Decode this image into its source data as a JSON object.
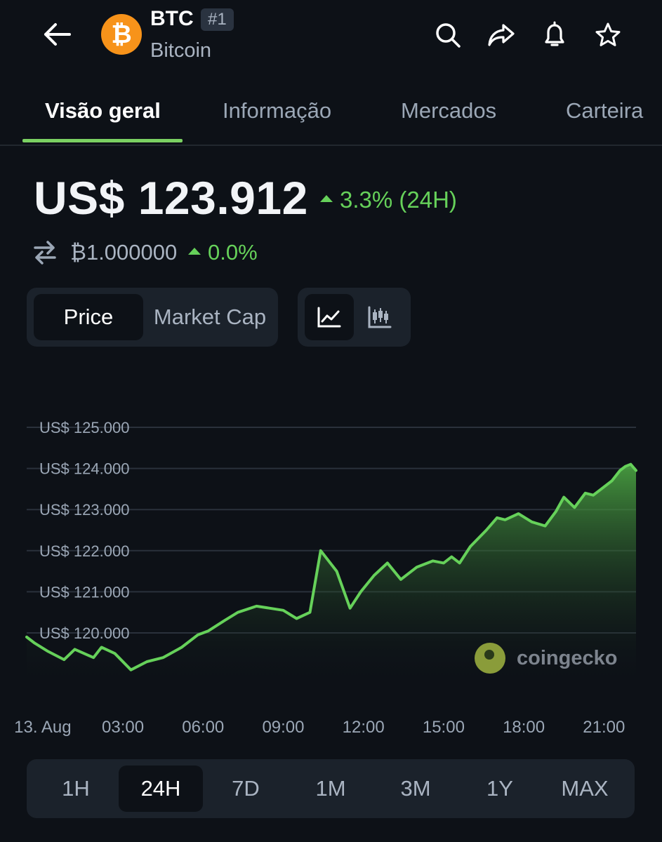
{
  "header": {
    "back_icon": "arrow-left-icon",
    "coin_logo_icon": "bitcoin-logo-icon",
    "ticker": "BTC",
    "rank": "#1",
    "name": "Bitcoin",
    "actions": [
      "search-icon",
      "share-icon",
      "bell-icon",
      "star-icon"
    ]
  },
  "tabs": [
    {
      "label": "Visão geral",
      "active": true
    },
    {
      "label": "Informação",
      "active": false
    },
    {
      "label": "Mercados",
      "active": false
    },
    {
      "label": "Carteira",
      "active": false
    }
  ],
  "price": {
    "value": "US$ 123.912",
    "change": "3.3% (24H)",
    "btc_value": "₿1.000000",
    "btc_change": "0.0%",
    "swap_icon": "swap-arrows-icon"
  },
  "metric_toggle": {
    "options": [
      "Price",
      "Market Cap"
    ],
    "selected": "Price"
  },
  "chart_type_toggle": {
    "options": [
      "line-chart-icon",
      "candlestick-chart-icon"
    ],
    "selected": "line-chart-icon"
  },
  "colors": {
    "accent": "#66d15a",
    "background": "#0d1117",
    "panel": "#1b222b",
    "muted": "#aab4c2"
  },
  "watermark": {
    "icon": "coingecko-logo-icon",
    "text": "coingecko"
  },
  "ranges": [
    "1H",
    "24H",
    "7D",
    "1M",
    "3M",
    "1Y",
    "MAX"
  ],
  "selected_range": "24H",
  "chart_data": {
    "type": "area",
    "title": "",
    "xlabel": "",
    "ylabel": "",
    "ylim": [
      118700,
      125000
    ],
    "yticks": [
      120000,
      121000,
      122000,
      123000,
      124000,
      125000
    ],
    "ytick_labels": [
      "US$ 120.000",
      "US$ 121.000",
      "US$ 122.000",
      "US$ 123.000",
      "US$ 124.000",
      "US$ 125.000"
    ],
    "xlim": [
      -0.6,
      22.2
    ],
    "xtick_labels": [
      "13. Aug",
      "03:00",
      "06:00",
      "09:00",
      "12:00",
      "15:00",
      "18:00",
      "21:00"
    ],
    "xtick_positions": [
      0,
      3,
      6,
      9,
      12,
      15,
      18,
      21
    ],
    "grid": true,
    "legend": "none",
    "series": [
      {
        "x": [
          -0.6,
          -0.3,
          0.2,
          0.8,
          1.2,
          1.9,
          2.2,
          2.7,
          3.3,
          3.9,
          4.5,
          5.2,
          5.8,
          6.2,
          6.8,
          7.3,
          8.0,
          8.5,
          9.0,
          9.5,
          10.0,
          10.4,
          11.0,
          11.5,
          11.9,
          12.4,
          12.9,
          13.4,
          14.0,
          14.6,
          15.0,
          15.3,
          15.6,
          16.0,
          16.6,
          17.0,
          17.3,
          17.8,
          18.3,
          18.8,
          19.2,
          19.5,
          19.9,
          20.3,
          20.6,
          20.9,
          21.3,
          21.6,
          21.8,
          22.0,
          22.2
        ],
        "y": [
          119900,
          119750,
          119550,
          119350,
          119600,
          119400,
          119650,
          119500,
          119100,
          119300,
          119400,
          119650,
          119950,
          120050,
          120300,
          120500,
          120650,
          120600,
          120550,
          120350,
          120500,
          122000,
          121500,
          120600,
          121000,
          121400,
          121700,
          121300,
          121600,
          121750,
          121700,
          121850,
          121700,
          122100,
          122500,
          122800,
          122750,
          122900,
          122700,
          122600,
          122950,
          123300,
          123050,
          123400,
          123350,
          123500,
          123700,
          123950,
          124050,
          124100,
          123950
        ]
      }
    ]
  }
}
